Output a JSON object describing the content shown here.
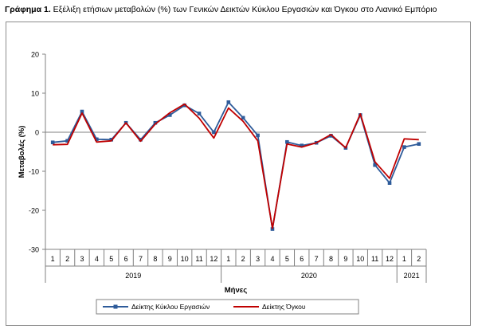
{
  "caption": {
    "label": "Γράφημα 1.",
    "text": "Εξέλιξη ετήσιων μεταβολών (%) των Γενικών Δεικτών Κύκλου Εργασιών και Όγκου στο Λιανικό Εμπόριο"
  },
  "chart_data": {
    "type": "line",
    "xlabel": "Μήνες",
    "ylabel": "Μεταβολές (%)",
    "ylim": [
      -30,
      20
    ],
    "yticks": [
      20,
      10,
      0,
      -10,
      -20,
      -30
    ],
    "grid": false,
    "legend_position": "bottom",
    "categories": [
      "1",
      "2",
      "3",
      "4",
      "5",
      "6",
      "7",
      "8",
      "9",
      "10",
      "11",
      "12",
      "1",
      "2",
      "3",
      "4",
      "5",
      "6",
      "7",
      "8",
      "9",
      "10",
      "11",
      "12",
      "1",
      "2"
    ],
    "year_groups": [
      {
        "label": "2019",
        "months": 12
      },
      {
        "label": "2020",
        "months": 12
      },
      {
        "label": "2021",
        "months": 2
      }
    ],
    "series": [
      {
        "name": "Δείκτης Κύκλου Εργασιών",
        "color": "#2e5b9a",
        "marker": "square",
        "values": [
          -2.6,
          -2.2,
          5.3,
          -1.8,
          -1.9,
          2.4,
          -1.9,
          2.4,
          4.4,
          6.9,
          4.8,
          0.0,
          7.7,
          3.7,
          -0.8,
          -24.8,
          -2.5,
          -3.4,
          -2.7,
          -0.9,
          -4.0,
          4.4,
          -8.4,
          -13.0,
          -3.8,
          -3.0
        ]
      },
      {
        "name": "Δείκτης Όγκου",
        "color": "#c00000",
        "marker": "none",
        "values": [
          -3.2,
          -3.1,
          4.9,
          -2.5,
          -2.2,
          2.4,
          -2.3,
          2.1,
          5.0,
          7.2,
          3.6,
          -1.5,
          6.2,
          2.8,
          -2.2,
          -24.6,
          -3.0,
          -3.8,
          -2.7,
          -0.6,
          -4.0,
          4.7,
          -7.6,
          -11.8,
          -1.7,
          -1.9
        ]
      }
    ]
  }
}
